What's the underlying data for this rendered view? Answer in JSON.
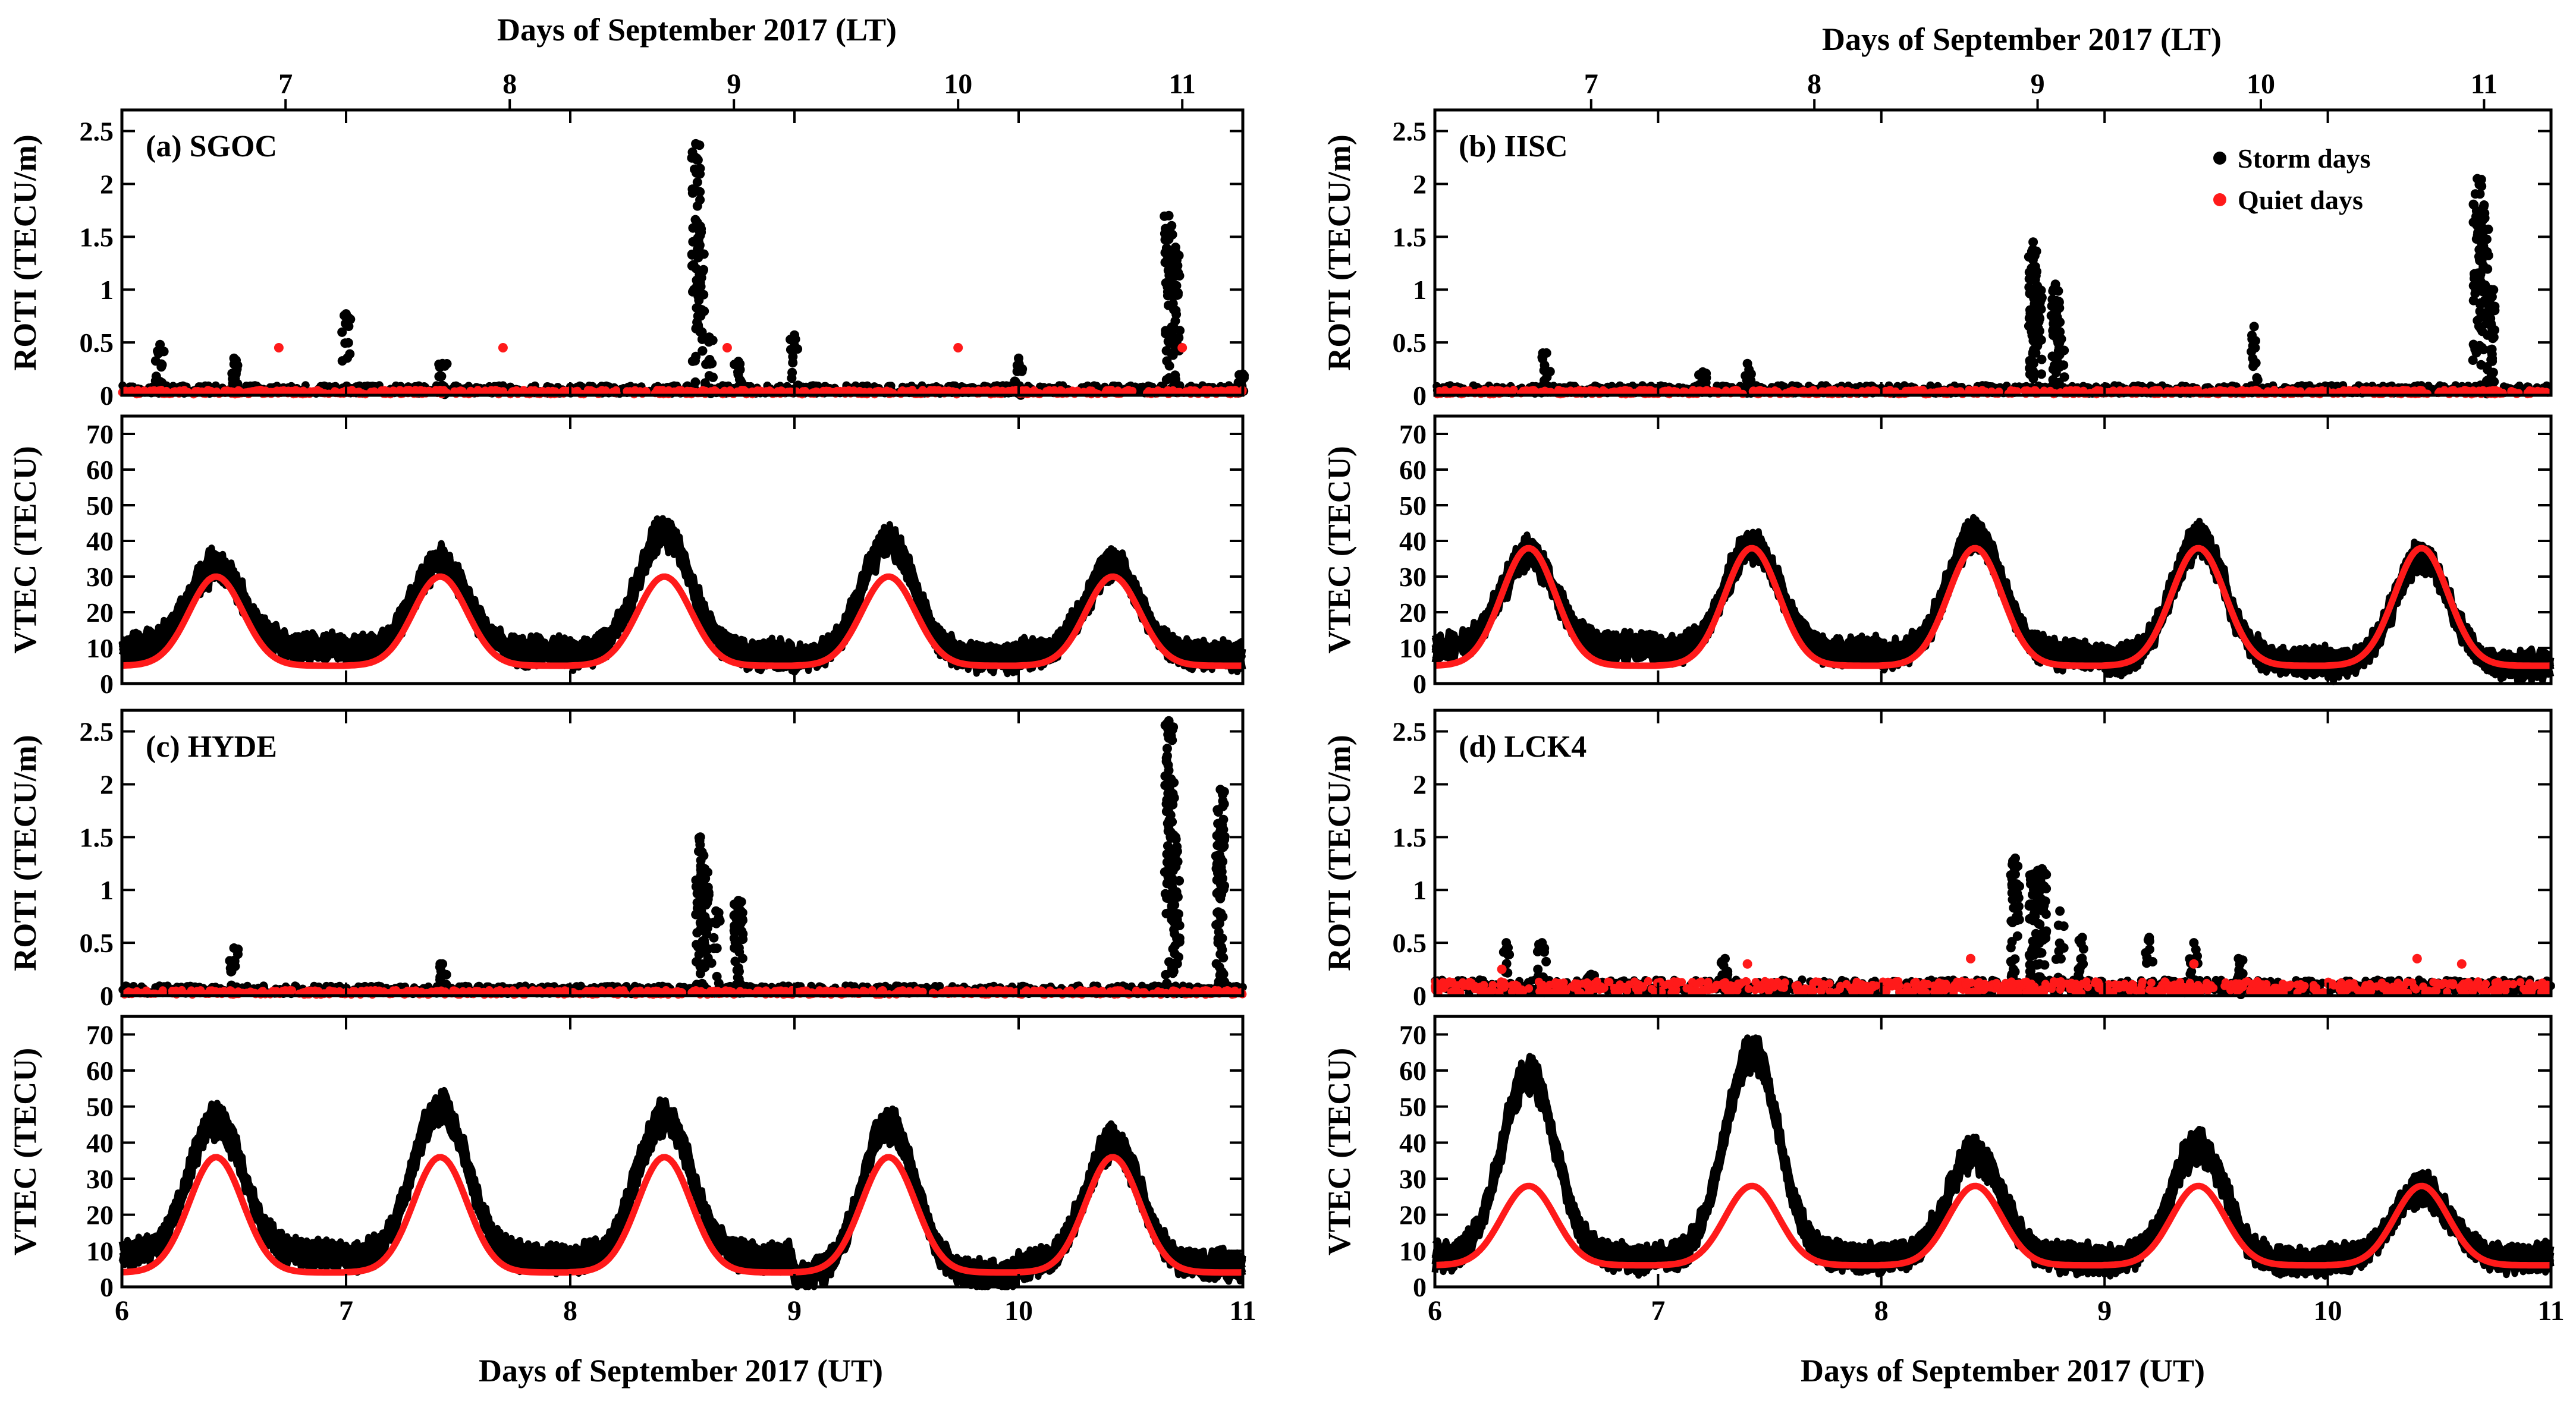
{
  "figure": {
    "top_axis_title": "Days of September 2017 (LT)",
    "bottom_axis_title": "Days of September 2017 (UT)",
    "roti_ylabel": "ROTI (TECU/m)",
    "vtec_ylabel": "VTEC (TECU)"
  },
  "legend": {
    "storm_label": "Storm days",
    "quiet_label": "Quiet days",
    "storm_color": "#000000",
    "quiet_color": "#ff1a1a"
  },
  "chart_data": [
    {
      "panel": "(a) SGOC",
      "type": "scatter",
      "xlabel_top": "Days of September 2017 (LT)",
      "xlim": [
        6,
        11
      ],
      "top_ticks": [
        "7",
        "8",
        "9",
        "10",
        "11"
      ],
      "top_tick_positions": [
        6.73,
        7.73,
        8.73,
        9.73,
        10.73
      ],
      "roti": {
        "ylabel": "ROTI (TECU/m)",
        "ylim": [
          0,
          2.7
        ],
        "yticks": [
          0,
          0.5,
          1,
          1.5,
          2,
          2.5
        ],
        "baseline_storm": 0.05,
        "baseline_quiet": 0.03,
        "storm_spikes": [
          [
            6.17,
            0.48
          ],
          [
            6.5,
            0.35
          ],
          [
            7.0,
            0.77
          ],
          [
            7.43,
            0.3
          ],
          [
            8.56,
            2.38
          ],
          [
            8.58,
            1.6
          ],
          [
            8.62,
            0.55
          ],
          [
            8.75,
            0.32
          ],
          [
            9.0,
            0.57
          ],
          [
            10.0,
            0.35
          ],
          [
            10.67,
            1.7
          ],
          [
            10.7,
            1.4
          ],
          [
            11.0,
            0.2
          ]
        ],
        "quiet_points": [
          [
            6.7,
            0.45
          ],
          [
            7.7,
            0.45
          ],
          [
            8.7,
            0.45
          ],
          [
            9.73,
            0.45
          ],
          [
            10.73,
            0.45
          ]
        ]
      },
      "vtec": {
        "ylabel": "VTEC (TECU)",
        "ylim": [
          0,
          75
        ],
        "yticks": [
          0,
          10,
          20,
          30,
          40,
          50,
          60,
          70
        ],
        "quiet_min": 5,
        "quiet_max": 30,
        "storm_peaks": [
          41,
          42,
          50,
          48,
          41
        ],
        "storm_mins": [
          7,
          6,
          5,
          4,
          5
        ]
      }
    },
    {
      "panel": "(b) IISC",
      "type": "scatter",
      "xlim": [
        6,
        11
      ],
      "top_ticks": [
        "7",
        "8",
        "9",
        "10",
        "11"
      ],
      "top_tick_positions": [
        6.7,
        7.7,
        8.7,
        9.7,
        10.7
      ],
      "roti": {
        "ylabel": "ROTI (TECU/m)",
        "ylim": [
          0,
          2.7
        ],
        "yticks": [
          0,
          0.5,
          1,
          1.5,
          2,
          2.5
        ],
        "baseline_storm": 0.05,
        "baseline_quiet": 0.03,
        "storm_spikes": [
          [
            6.5,
            0.4
          ],
          [
            7.2,
            0.22
          ],
          [
            7.4,
            0.3
          ],
          [
            8.68,
            1.45
          ],
          [
            8.7,
            1.0
          ],
          [
            8.78,
            1.05
          ],
          [
            8.8,
            0.6
          ],
          [
            9.67,
            0.65
          ],
          [
            10.67,
            2.05
          ],
          [
            10.7,
            1.8
          ],
          [
            10.73,
            1.0
          ]
        ],
        "quiet_points": []
      },
      "vtec": {
        "ylabel": "VTEC (TECU)",
        "ylim": [
          0,
          75
        ],
        "yticks": [
          0,
          10,
          20,
          30,
          40,
          50,
          60,
          70
        ],
        "quiet_min": 5,
        "quiet_max": 38,
        "storm_peaks": [
          44,
          47,
          50,
          48,
          44
        ],
        "storm_mins": [
          7,
          6,
          5,
          3,
          2
        ]
      }
    },
    {
      "panel": "(c) HYDE",
      "type": "scatter",
      "xlim": [
        6,
        11
      ],
      "xlabel": "Days of September 2017 (UT)",
      "xticks": [
        6,
        7,
        8,
        9,
        10,
        11
      ],
      "roti": {
        "ylabel": "ROTI (TECU/m)",
        "ylim": [
          0,
          2.7
        ],
        "yticks": [
          0,
          0.5,
          1,
          1.5,
          2,
          2.5
        ],
        "baseline_storm": 0.05,
        "baseline_quiet": 0.03,
        "storm_spikes": [
          [
            6.5,
            0.45
          ],
          [
            7.43,
            0.3
          ],
          [
            8.58,
            1.5
          ],
          [
            8.6,
            1.2
          ],
          [
            8.65,
            0.8
          ],
          [
            8.75,
            0.9
          ],
          [
            10.67,
            2.6
          ],
          [
            10.68,
            2.05
          ],
          [
            10.7,
            1.5
          ],
          [
            10.9,
            1.95
          ],
          [
            10.9,
            1.6
          ]
        ],
        "quiet_points": []
      },
      "vtec": {
        "ylabel": "VTEC (TECU)",
        "ylim": [
          0,
          75
        ],
        "yticks": [
          0,
          10,
          20,
          30,
          40,
          50,
          60,
          70
        ],
        "quiet_min": 4,
        "quiet_max": 36,
        "storm_peaks": [
          54,
          58,
          55,
          53,
          48
        ],
        "storm_mins": [
          6,
          5,
          5,
          0,
          3
        ]
      }
    },
    {
      "panel": "(d) LCK4",
      "type": "scatter",
      "xlim": [
        6,
        11
      ],
      "xlabel": "Days of September 2017 (UT)",
      "xticks": [
        6,
        7,
        8,
        9,
        10,
        11
      ],
      "roti": {
        "ylabel": "ROTI (TECU/m)",
        "ylim": [
          0,
          2.7
        ],
        "yticks": [
          0,
          0.5,
          1,
          1.5,
          2,
          2.5
        ],
        "baseline_storm": 0.08,
        "baseline_quiet": 0.08,
        "storm_spikes": [
          [
            6.32,
            0.5
          ],
          [
            6.48,
            0.5
          ],
          [
            6.7,
            0.2
          ],
          [
            7.3,
            0.35
          ],
          [
            8.6,
            1.3
          ],
          [
            8.68,
            1.15
          ],
          [
            8.72,
            1.2
          ],
          [
            8.8,
            0.8
          ],
          [
            8.9,
            0.55
          ],
          [
            9.2,
            0.55
          ],
          [
            9.4,
            0.5
          ],
          [
            9.6,
            0.35
          ]
        ],
        "quiet_points": [
          [
            6.3,
            0.25
          ],
          [
            7.4,
            0.3
          ],
          [
            8.4,
            0.35
          ],
          [
            9.4,
            0.3
          ],
          [
            10.4,
            0.35
          ],
          [
            10.6,
            0.3
          ]
        ]
      },
      "vtec": {
        "ylabel": "VTEC (TECU)",
        "ylim": [
          0,
          75
        ],
        "yticks": [
          0,
          10,
          20,
          30,
          40,
          50,
          60,
          70
        ],
        "quiet_min": 6,
        "quiet_max": 28,
        "storm_peaks": [
          67,
          73,
          45,
          47,
          35
        ],
        "storm_mins": [
          5,
          5,
          5,
          4,
          5
        ]
      }
    }
  ]
}
